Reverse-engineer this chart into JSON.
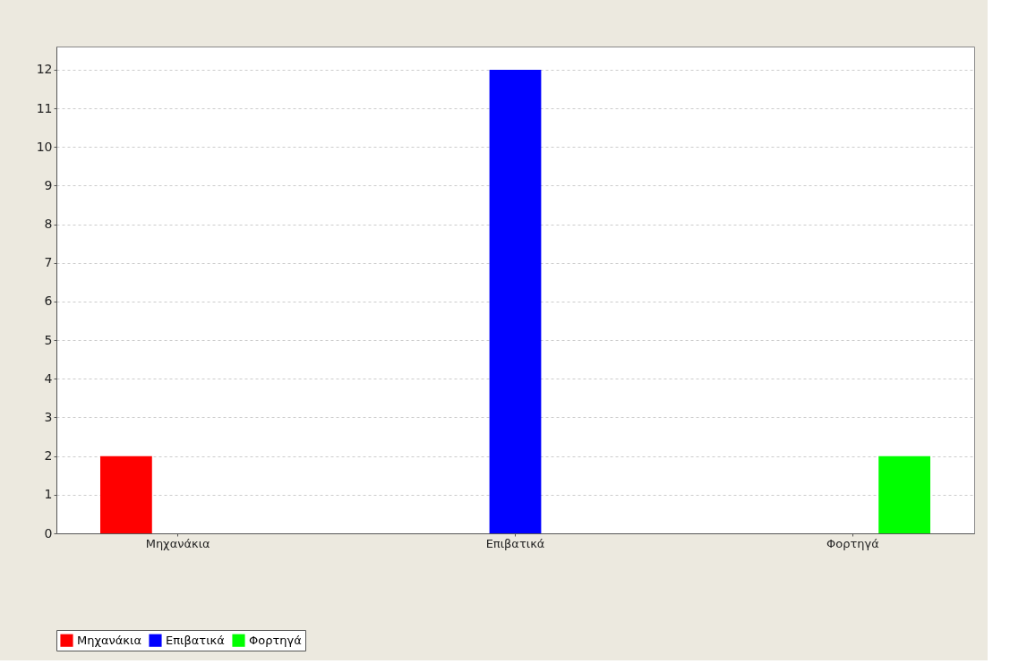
{
  "chart_data": {
    "type": "bar",
    "categories": [
      "Μηχανάκια",
      "Επιβατικά",
      "Φορτηγά"
    ],
    "series": [
      {
        "name": "Μηχανάκια",
        "color": "#ff0000",
        "values": [
          2,
          null,
          null
        ]
      },
      {
        "name": "Επιβατικά",
        "color": "#0000ff",
        "values": [
          null,
          12,
          null
        ]
      },
      {
        "name": "Φορτηγά",
        "color": "#00ff00",
        "values": [
          null,
          null,
          2
        ]
      }
    ],
    "ylim": [
      0,
      12.6
    ],
    "yticks": [
      0,
      1,
      2,
      3,
      4,
      5,
      6,
      7,
      8,
      9,
      10,
      11,
      12
    ],
    "grid": "y",
    "legend": "bottom"
  }
}
